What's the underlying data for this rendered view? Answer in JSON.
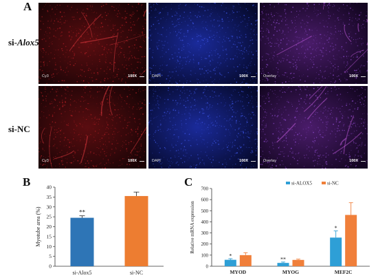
{
  "panel_a": {
    "letter": "A",
    "rows": [
      {
        "label_prefix": "si-",
        "label_gene": "Alox5",
        "tiles": [
          "Cy3",
          "DAPI",
          "Overlay"
        ],
        "magnification": "100X"
      },
      {
        "label_prefix": "si-NC",
        "label_gene": "",
        "tiles": [
          "Cy3",
          "DAPI",
          "Overlay"
        ],
        "magnification": "100X"
      }
    ]
  },
  "panel_b": {
    "letter": "B"
  },
  "panel_c": {
    "letter": "C"
  },
  "chart_data": [
    {
      "type": "bar",
      "title": "",
      "xlabel": "",
      "ylabel": "Myotube area (%)",
      "ylim": [
        0,
        40
      ],
      "yticks": [
        0,
        5,
        10,
        15,
        20,
        25,
        30,
        35,
        40
      ],
      "grid": false,
      "categories": [
        "si-Alox5",
        "si-NC"
      ],
      "values": [
        24.5,
        35.5
      ],
      "errors": [
        1.0,
        2.0
      ],
      "annotations": [
        "**",
        ""
      ],
      "colors": [
        "#2e75b6",
        "#ed7d31"
      ]
    },
    {
      "type": "bar",
      "title": "",
      "xlabel": "",
      "ylabel": "Relative mRNA expression",
      "ylim": [
        0,
        700
      ],
      "yticks": [
        0,
        100,
        200,
        300,
        400,
        500,
        600,
        700
      ],
      "grid": false,
      "legend_position": "top",
      "categories": [
        "MYOD",
        "MYOG",
        "MEF2C"
      ],
      "series": [
        {
          "name": "si-ALOX5",
          "color": "#2e9fd6",
          "values": [
            58,
            30,
            258
          ],
          "errors": [
            10,
            8,
            60
          ],
          "annotations": [
            "*",
            "**",
            "*"
          ]
        },
        {
          "name": "si-NC",
          "color": "#f07f3a",
          "values": [
            100,
            57,
            462
          ],
          "errors": [
            22,
            7,
            110
          ],
          "annotations": [
            "",
            "",
            ""
          ]
        }
      ]
    }
  ]
}
